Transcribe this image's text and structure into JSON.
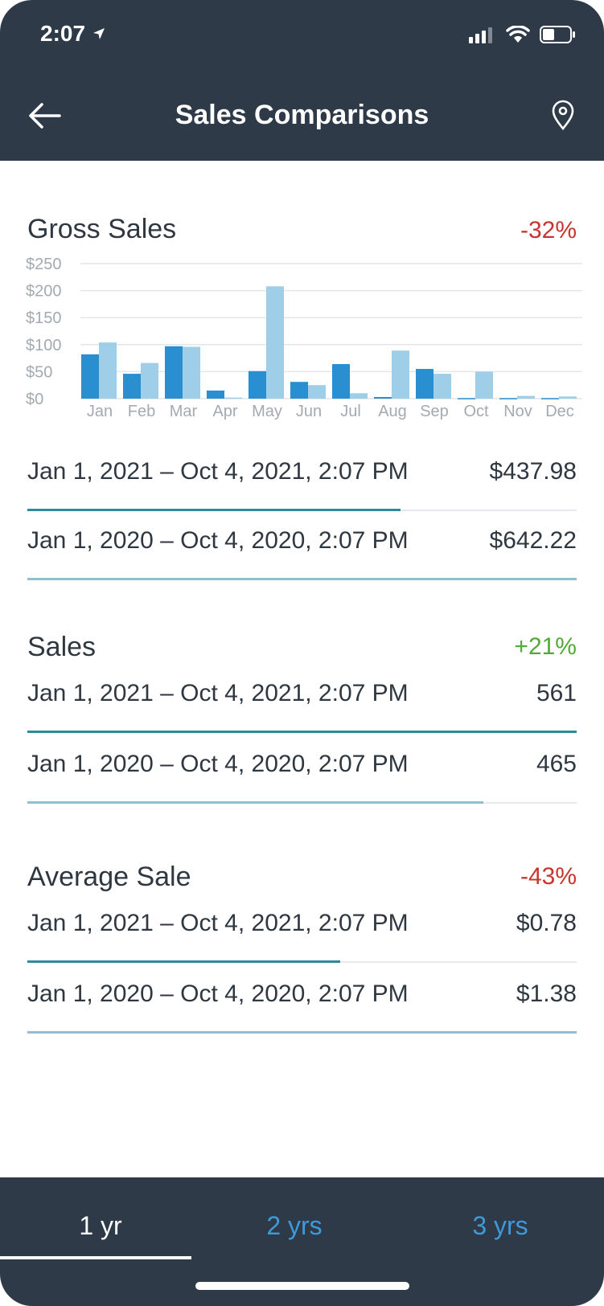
{
  "status": {
    "time": "2:07"
  },
  "header": {
    "title": "Sales Comparisons"
  },
  "gross_sales": {
    "title": "Gross Sales",
    "change": "-32%",
    "rows": [
      {
        "label": "Jan 1, 2021 – Oct 4, 2021, 2:07 PM",
        "value": "$437.98",
        "fill": 0.68,
        "color": "#2c8a9a"
      },
      {
        "label": "Jan 1, 2020 – Oct 4, 2020, 2:07 PM",
        "value": "$642.22",
        "fill": 1.0,
        "color": "#8fc0d0"
      }
    ]
  },
  "sales": {
    "title": "Sales",
    "change": "+21%",
    "rows": [
      {
        "label": "Jan 1, 2021 – Oct 4, 2021, 2:07 PM",
        "value": "561",
        "fill": 1.0,
        "color": "#2c8a9a"
      },
      {
        "label": "Jan 1, 2020 – Oct 4, 2020, 2:07 PM",
        "value": "465",
        "fill": 0.83,
        "color": "#8fc0d0"
      }
    ]
  },
  "average_sale": {
    "title": "Average Sale",
    "change": "-43%",
    "rows": [
      {
        "label": "Jan 1, 2021 – Oct 4, 2021, 2:07 PM",
        "value": "$0.78",
        "fill": 0.57,
        "color": "#2c8a9a"
      },
      {
        "label": "Jan 1, 2020 – Oct 4, 2020, 2:07 PM",
        "value": "$1.38",
        "fill": 1.0,
        "color": "#8fc0d0"
      }
    ]
  },
  "tabs": [
    {
      "label": "1 yr",
      "active": true
    },
    {
      "label": "2 yrs",
      "active": false
    },
    {
      "label": "3 yrs",
      "active": false
    }
  ],
  "colors": {
    "header_bg": "#2e3a48",
    "negative": "#c8352e",
    "positive": "#52a838",
    "series_current": "#2a8fd0",
    "series_previous": "#9fcfe8",
    "tab_inactive": "#3e9ad9"
  },
  "chart_data": {
    "type": "bar",
    "categories": [
      "Jan",
      "Feb",
      "Mar",
      "Apr",
      "May",
      "Jun",
      "Jul",
      "Aug",
      "Sep",
      "Oct",
      "Nov",
      "Dec"
    ],
    "y_ticks": [
      "$250",
      "$200",
      "$150",
      "$100",
      "$50",
      "$0"
    ],
    "ylim": [
      0,
      250
    ],
    "series": [
      {
        "values": [
          82,
          46,
          97,
          15,
          51,
          31,
          64,
          3,
          55,
          1,
          1,
          1
        ]
      },
      {
        "values": [
          104,
          66,
          96,
          2,
          208,
          25,
          10,
          89,
          46,
          50,
          5,
          4
        ]
      }
    ]
  }
}
